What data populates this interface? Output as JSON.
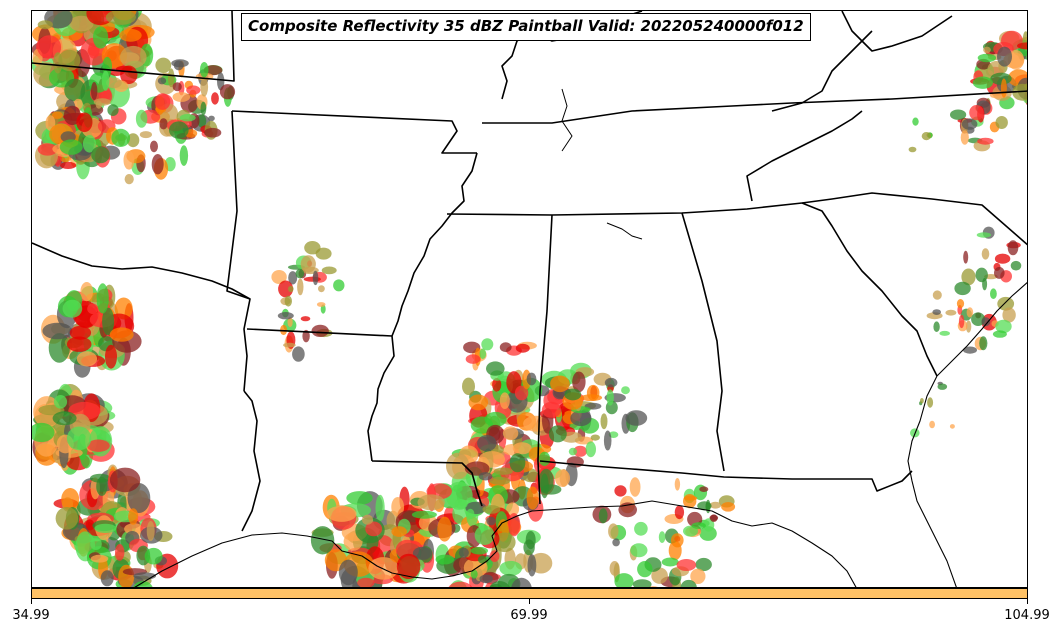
{
  "title": "Composite Reflectivity 35 dBZ Paintball Valid: 202205240000f012",
  "colorbar": {
    "color": "#ffc266",
    "ticks": [
      "34.99",
      "69.99",
      "104.99"
    ]
  },
  "map": {
    "region": "Southeastern United States",
    "background": "#ffffff",
    "border_color": "#000000",
    "member_colors": [
      "#ff3333",
      "#e60000",
      "#ff8000",
      "#ffa64d",
      "#33cc33",
      "#55dd55",
      "#2e8b2e",
      "#8b2222",
      "#999933",
      "#c8a050",
      "#555555"
    ]
  }
}
